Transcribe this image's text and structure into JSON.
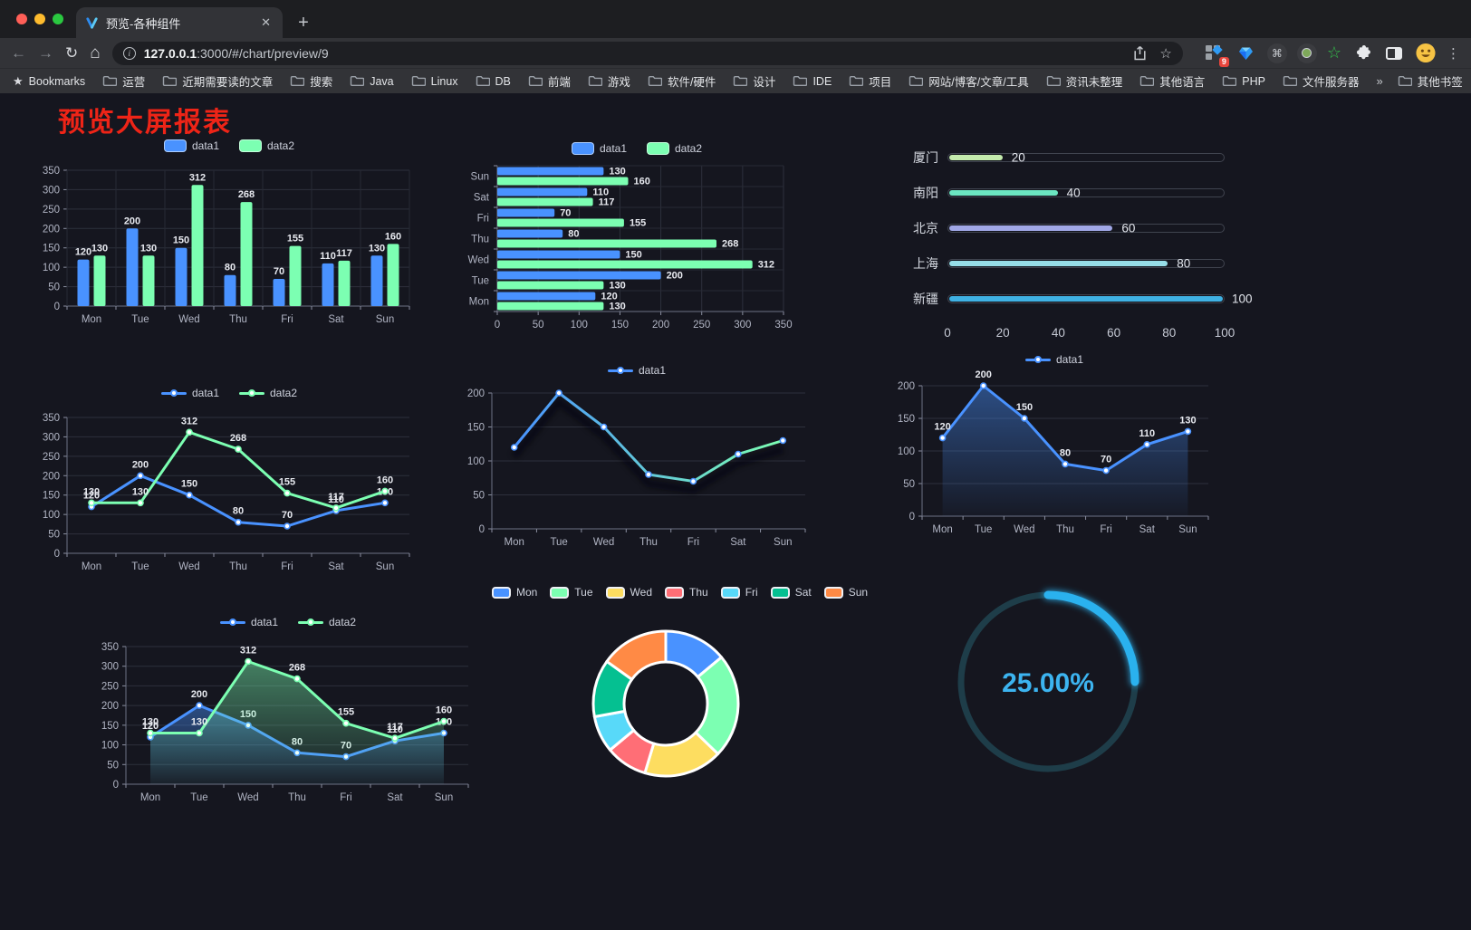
{
  "browser": {
    "tab": {
      "title": "预览-各种组件",
      "close": "✕",
      "new_tab": "+"
    },
    "url": {
      "host": "127.0.0.1",
      "rest": ":3000/#/chart/preview/9"
    },
    "extension_badge": "9",
    "bookmarks_label": "Bookmarks",
    "bookmarks": [
      "运营",
      "近期需要读的文章",
      "搜索",
      "Java",
      "Linux",
      "DB",
      "前端",
      "游戏",
      "软件/硬件",
      "设计",
      "IDE",
      "项目",
      "网站/博客/文章/工具",
      "资讯未整理",
      "其他语言",
      "PHP",
      "文件服务器"
    ],
    "bookmarks_overflow": "»",
    "other_bookmarks": "其他书签"
  },
  "page": {
    "title": "预览大屏报表",
    "title_color": "#ee2417"
  },
  "chart_data": [
    {
      "id": "grouped-bar",
      "type": "bar",
      "categories": [
        "Mon",
        "Tue",
        "Wed",
        "Thu",
        "Fri",
        "Sat",
        "Sun"
      ],
      "series": [
        {
          "name": "data1",
          "color": "#4992ff",
          "values": [
            120,
            200,
            150,
            80,
            70,
            110,
            130
          ]
        },
        {
          "name": "data2",
          "color": "#7cffb2",
          "values": [
            130,
            130,
            312,
            268,
            155,
            117,
            160
          ]
        }
      ],
      "ylim": [
        0,
        350
      ],
      "yticks": [
        0,
        50,
        100,
        150,
        200,
        250,
        300,
        350
      ],
      "legend_marker": "rect",
      "grid": true,
      "show_labels": true
    },
    {
      "id": "grouped-hbar",
      "type": "hbar",
      "categories": [
        "Mon",
        "Tue",
        "Wed",
        "Thu",
        "Fri",
        "Sat",
        "Sun"
      ],
      "series": [
        {
          "name": "data1",
          "color": "#4992ff",
          "values": [
            120,
            200,
            150,
            80,
            70,
            110,
            130
          ]
        },
        {
          "name": "data2",
          "color": "#7cffb2",
          "values": [
            130,
            130,
            312,
            268,
            155,
            117,
            160
          ]
        }
      ],
      "xlim": [
        0,
        350
      ],
      "xticks": [
        0,
        50,
        100,
        150,
        200,
        250,
        300,
        350
      ],
      "legend_marker": "rect",
      "show_labels": true
    },
    {
      "id": "city-progress",
      "type": "progress",
      "items": [
        {
          "label": "厦门",
          "value": 20,
          "color": "#c4ebad"
        },
        {
          "label": "南阳",
          "value": 40,
          "color": "#6be6c1"
        },
        {
          "label": "北京",
          "value": 60,
          "color": "#a0a7e6"
        },
        {
          "label": "上海",
          "value": 80,
          "color": "#96dee8"
        },
        {
          "label": "新疆",
          "value": 100,
          "color": "#3fb1e3"
        }
      ],
      "max": 100,
      "axis_ticks": [
        0,
        20,
        40,
        60,
        80,
        100
      ]
    },
    {
      "id": "dual-line",
      "type": "line",
      "categories": [
        "Mon",
        "Tue",
        "Wed",
        "Thu",
        "Fri",
        "Sat",
        "Sun"
      ],
      "series": [
        {
          "name": "data1",
          "color": "#4992ff",
          "values": [
            120,
            200,
            150,
            80,
            70,
            110,
            130
          ]
        },
        {
          "name": "data2",
          "color": "#7cffb2",
          "values": [
            130,
            130,
            312,
            268,
            155,
            117,
            160
          ]
        }
      ],
      "ylim": [
        0,
        350
      ],
      "yticks": [
        0,
        50,
        100,
        150,
        200,
        250,
        300,
        350
      ],
      "legend_marker": "line",
      "show_labels": true
    },
    {
      "id": "gradient-line",
      "type": "line",
      "categories": [
        "Mon",
        "Tue",
        "Wed",
        "Thu",
        "Fri",
        "Sat",
        "Sun"
      ],
      "series": [
        {
          "name": "data1",
          "color": "#4992ff",
          "color_end": "#7cffb2",
          "values": [
            120,
            200,
            150,
            80,
            70,
            110,
            130
          ]
        }
      ],
      "ylim": [
        0,
        200
      ],
      "yticks": [
        0,
        50,
        100,
        150,
        200
      ],
      "legend_marker": "line",
      "show_labels": false,
      "gradient": true,
      "shadow": true
    },
    {
      "id": "single-area",
      "type": "area",
      "categories": [
        "Mon",
        "Tue",
        "Wed",
        "Thu",
        "Fri",
        "Sat",
        "Sun"
      ],
      "series": [
        {
          "name": "data1",
          "color": "#4992ff",
          "values": [
            120,
            200,
            150,
            80,
            70,
            110,
            130
          ]
        }
      ],
      "ylim": [
        0,
        200
      ],
      "yticks": [
        0,
        50,
        100,
        150,
        200
      ],
      "legend_marker": "line",
      "show_labels": true
    },
    {
      "id": "dual-area",
      "type": "area",
      "categories": [
        "Mon",
        "Tue",
        "Wed",
        "Thu",
        "Fri",
        "Sat",
        "Sun"
      ],
      "series": [
        {
          "name": "data1",
          "color": "#4992ff",
          "values": [
            120,
            200,
            150,
            80,
            70,
            110,
            130
          ]
        },
        {
          "name": "data2",
          "color": "#7cffb2",
          "values": [
            130,
            130,
            312,
            268,
            155,
            117,
            160
          ]
        }
      ],
      "ylim": [
        0,
        350
      ],
      "yticks": [
        0,
        50,
        100,
        150,
        200,
        250,
        300,
        350
      ],
      "legend_marker": "line",
      "show_labels": true
    },
    {
      "id": "weekday-donut",
      "type": "donut",
      "items": [
        {
          "label": "Mon",
          "value": 120,
          "color": "#4992ff"
        },
        {
          "label": "Tue",
          "value": 200,
          "color": "#7cffb2"
        },
        {
          "label": "Wed",
          "value": 150,
          "color": "#fddd60"
        },
        {
          "label": "Thu",
          "value": 80,
          "color": "#ff6e76"
        },
        {
          "label": "Fri",
          "value": 70,
          "color": "#58d9f9"
        },
        {
          "label": "Sat",
          "value": 110,
          "color": "#05c091"
        },
        {
          "label": "Sun",
          "value": 130,
          "color": "#ff8a45"
        }
      ],
      "legend_marker": "pie"
    },
    {
      "id": "percent-gauge",
      "type": "gauge",
      "value": 25,
      "max": 100,
      "label": "25.00%",
      "color": "#2cb1ee",
      "track_color": "#1e3d49"
    }
  ]
}
